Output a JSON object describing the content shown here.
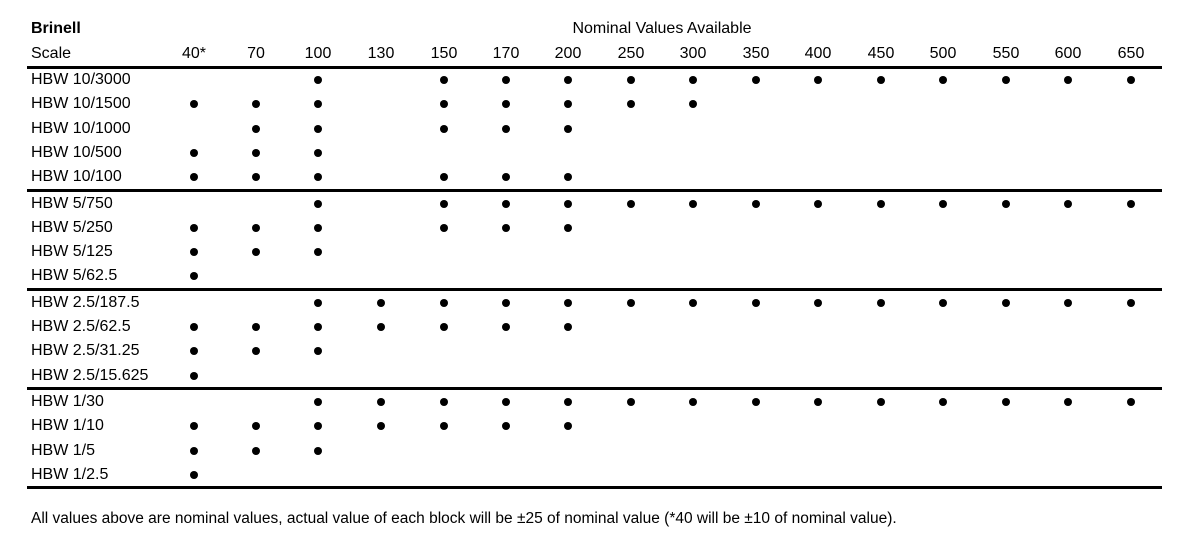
{
  "header": {
    "scale_title": "Brinell",
    "nominal_title": "Nominal Values Available",
    "scale_label": "Scale"
  },
  "columns": [
    "40*",
    "70",
    "100",
    "130",
    "150",
    "170",
    "200",
    "250",
    "300",
    "350",
    "400",
    "450",
    "500",
    "550",
    "600",
    "650"
  ],
  "groups": [
    {
      "rows": [
        {
          "label": "HBW 10/3000",
          "values": [
            "100",
            "150",
            "170",
            "200",
            "250",
            "300",
            "350",
            "400",
            "450",
            "500",
            "550",
            "600",
            "650"
          ]
        },
        {
          "label": "HBW 10/1500",
          "values": [
            "40*",
            "70",
            "100",
            "150",
            "170",
            "200",
            "250",
            "300"
          ]
        },
        {
          "label": "HBW 10/1000",
          "values": [
            "70",
            "100",
            "150",
            "170",
            "200"
          ]
        },
        {
          "label": "HBW 10/500",
          "values": [
            "40*",
            "70",
            "100"
          ]
        },
        {
          "label": "HBW 10/100",
          "values": [
            "40*",
            "70",
            "100",
            "150",
            "170",
            "200"
          ]
        }
      ]
    },
    {
      "rows": [
        {
          "label": "HBW 5/750",
          "values": [
            "100",
            "150",
            "170",
            "200",
            "250",
            "300",
            "350",
            "400",
            "450",
            "500",
            "550",
            "600",
            "650"
          ]
        },
        {
          "label": "HBW 5/250",
          "values": [
            "40*",
            "70",
            "100",
            "150",
            "170",
            "200"
          ]
        },
        {
          "label": "HBW 5/125",
          "values": [
            "40*",
            "70",
            "100"
          ]
        },
        {
          "label": "HBW 5/62.5",
          "values": [
            "40*"
          ]
        }
      ]
    },
    {
      "rows": [
        {
          "label": "HBW 2.5/187.5",
          "values": [
            "100",
            "130",
            "150",
            "170",
            "200",
            "250",
            "300",
            "350",
            "400",
            "450",
            "500",
            "550",
            "600",
            "650"
          ]
        },
        {
          "label": "HBW 2.5/62.5",
          "values": [
            "40*",
            "70",
            "100",
            "130",
            "150",
            "170",
            "200"
          ]
        },
        {
          "label": "HBW 2.5/31.25",
          "values": [
            "40*",
            "70",
            "100"
          ]
        },
        {
          "label": "HBW 2.5/15.625",
          "values": [
            "40*"
          ]
        }
      ]
    },
    {
      "rows": [
        {
          "label": "HBW 1/30",
          "values": [
            "100",
            "130",
            "150",
            "170",
            "200",
            "250",
            "300",
            "350",
            "400",
            "450",
            "500",
            "550",
            "600",
            "650"
          ]
        },
        {
          "label": "HBW 1/10",
          "values": [
            "40*",
            "70",
            "100",
            "130",
            "150",
            "170",
            "200"
          ]
        },
        {
          "label": "HBW 1/5",
          "values": [
            "40*",
            "70",
            "100"
          ]
        },
        {
          "label": "HBW 1/2.5",
          "values": [
            "40*"
          ]
        }
      ]
    }
  ],
  "footnote": "All values above are nominal values, actual value of each block will be ±25 of nominal value (*40 will be ±10 of nominal value)."
}
